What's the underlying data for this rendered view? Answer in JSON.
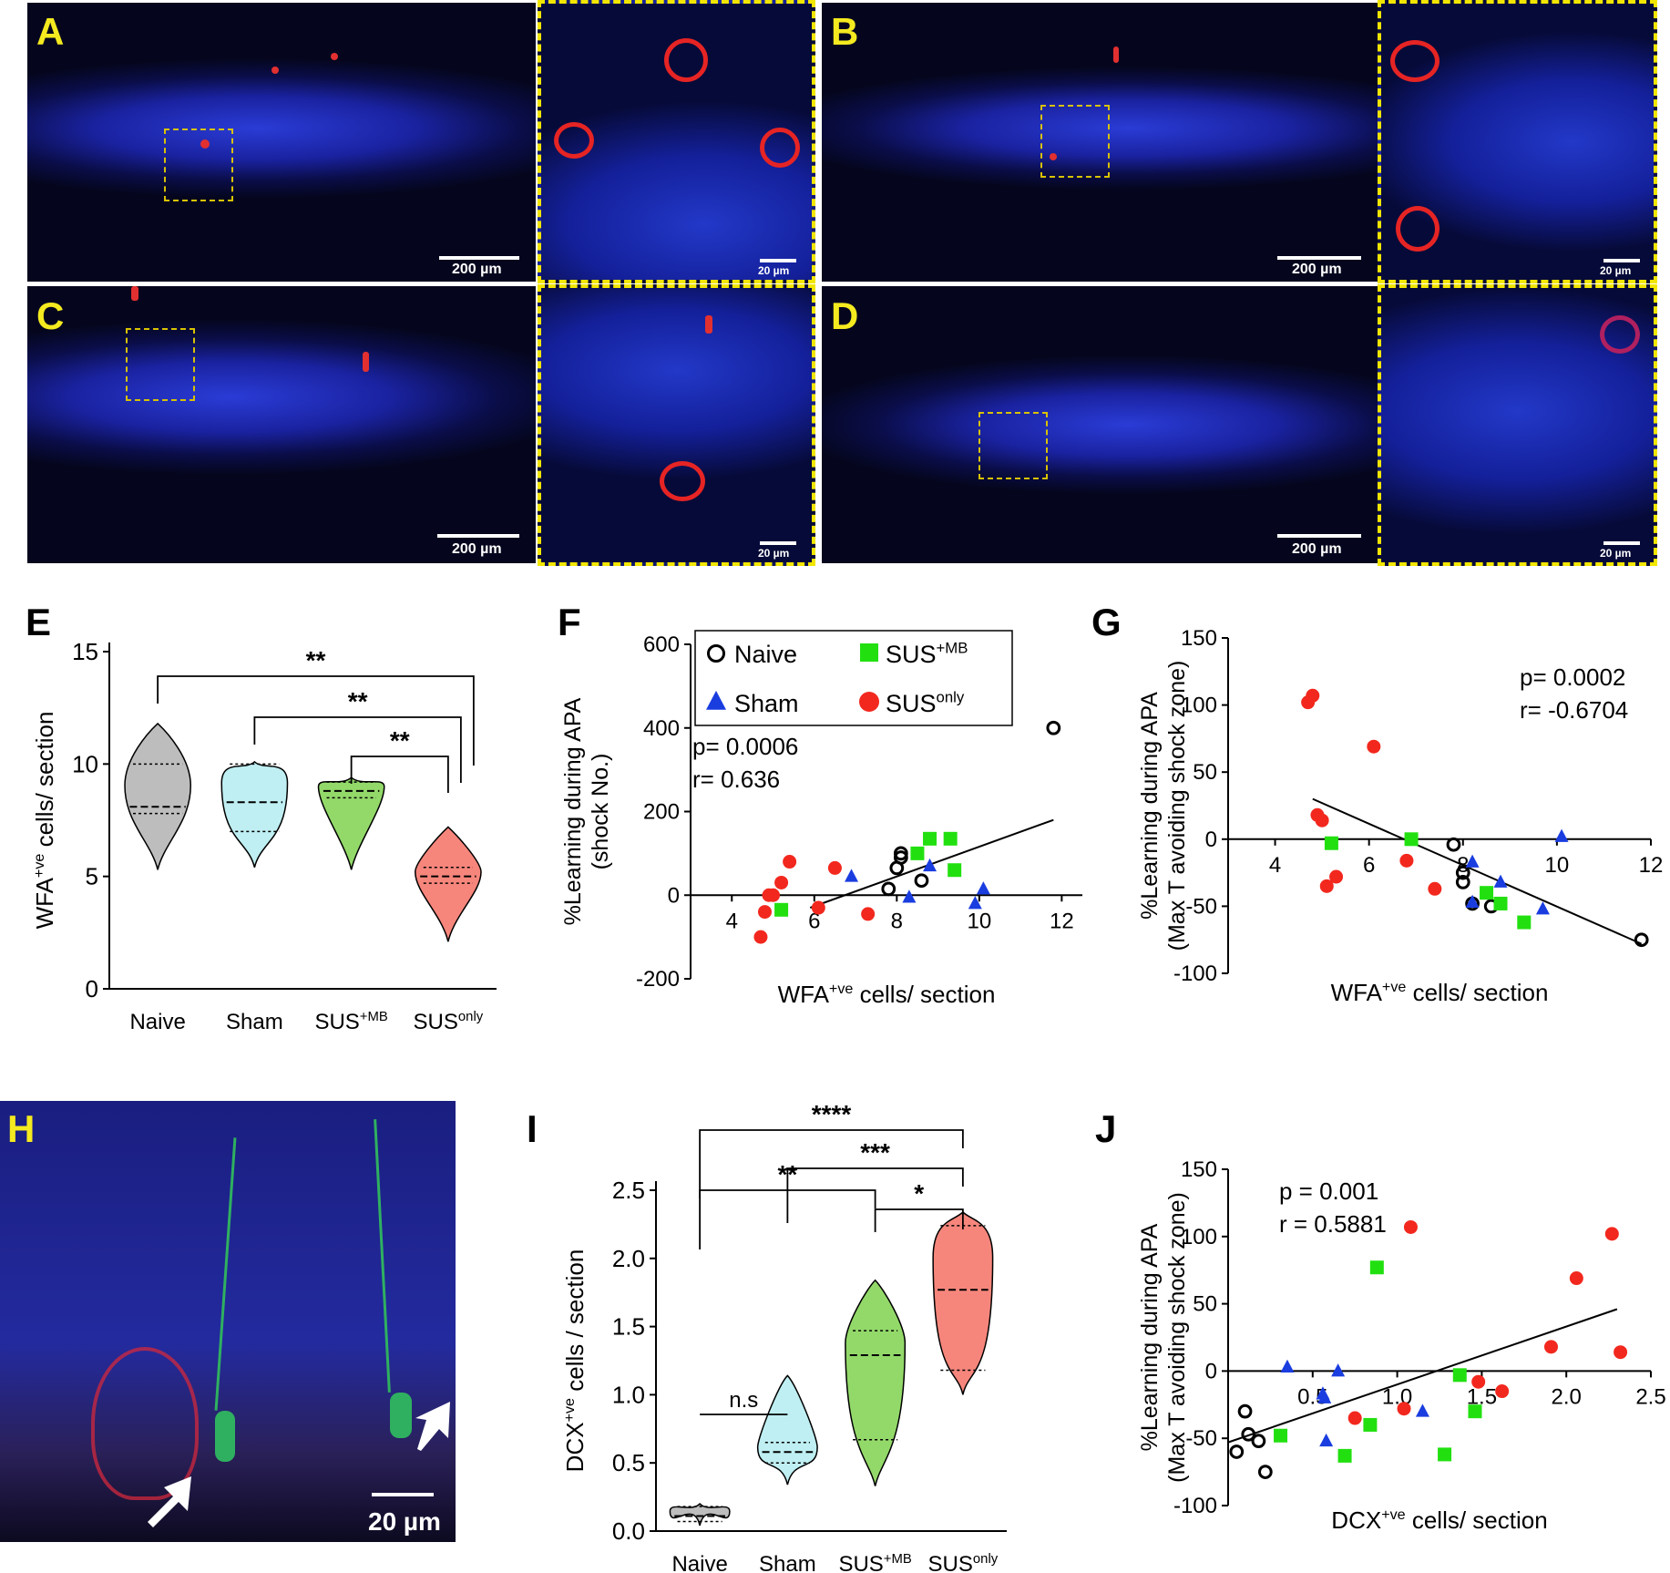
{
  "panels": {
    "A": "A",
    "B": "B",
    "C": "C",
    "D": "D",
    "E": "E",
    "F": "F",
    "G": "G",
    "H": "H",
    "I": "I",
    "J": "J"
  },
  "scalebars": {
    "large": "200 µm",
    "small": "20 µm",
    "h": "20 µm"
  },
  "legend": {
    "naive": "Naive",
    "sham": "Sham",
    "sus_mb_base": "SUS",
    "sus_mb_sup": "+MB",
    "sus_only_base": "SUS",
    "sus_only_sup": "only"
  },
  "colors": {
    "naive": "#000000",
    "sham": "#1a3de0",
    "sus_mb": "#22e010",
    "sus_only": "#f2281e",
    "violin_naive": "#bdbdbd",
    "violin_sham": "#bfeff2",
    "violin_sus_mb": "#93d96a",
    "violin_sus_only": "#f6867c"
  },
  "chart_data": [
    {
      "id": "E",
      "type": "violin",
      "ylabel_base": "WFA",
      "ylabel_sup": "+ve",
      "ylabel_rest": " cells/ section",
      "yticks": [
        "0",
        "5",
        "10",
        "15"
      ],
      "ylim": [
        0,
        15
      ],
      "categories": [
        "Naive",
        "Sham",
        "SUS+MB",
        "SUSonly"
      ],
      "groups": [
        {
          "name": "Naive",
          "min": 5.3,
          "max": 11.8,
          "median": 8.1,
          "q1": 7.8,
          "q3": 10.0
        },
        {
          "name": "Sham",
          "min": 5.4,
          "max": 10.1,
          "median": 8.3,
          "q1": 7.0,
          "q3": 10.0
        },
        {
          "name": "SUS+MB",
          "min": 5.3,
          "max": 9.4,
          "median": 8.8,
          "q1": 8.5,
          "q3": 9.2
        },
        {
          "name": "SUSonly",
          "min": 2.1,
          "max": 7.2,
          "median": 5.0,
          "q1": 4.7,
          "q3": 5.4
        }
      ],
      "significance": [
        {
          "from": "Naive",
          "to": "SUSonly",
          "label": "**"
        },
        {
          "from": "Sham",
          "to": "SUSonly",
          "label": "**"
        },
        {
          "from": "SUS+MB",
          "to": "SUSonly",
          "label": "**"
        }
      ]
    },
    {
      "id": "F",
      "type": "scatter",
      "ylabel1": "%Learning during APA",
      "ylabel2": "(shock No.)",
      "xlabel_base": "WFA",
      "xlabel_sup": "+ve",
      "xlabel_rest": " cells/ section",
      "xticks": [
        "4",
        "6",
        "8",
        "10",
        "12"
      ],
      "yticks": [
        "-200",
        "0",
        "200",
        "400",
        "600"
      ],
      "xlim": [
        3,
        12.5
      ],
      "ylim": [
        -200,
        600
      ],
      "stat_p": "p= 0.0006",
      "stat_r": "r= 0.636",
      "fit": {
        "x1": 5.9,
        "y1": -30,
        "x2": 11.8,
        "y2": 180
      },
      "series": [
        {
          "name": "Naive",
          "points": [
            [
              11.8,
              400
            ],
            [
              8.1,
              100
            ],
            [
              8.0,
              65
            ],
            [
              7.8,
              15
            ],
            [
              8.6,
              35
            ],
            [
              8.1,
              90
            ]
          ]
        },
        {
          "name": "Sham",
          "points": [
            [
              6.9,
              45
            ],
            [
              8.3,
              -5
            ],
            [
              8.8,
              70
            ],
            [
              9.9,
              -20
            ],
            [
              10.1,
              15
            ]
          ]
        },
        {
          "name": "SUS+MB",
          "points": [
            [
              8.5,
              100
            ],
            [
              8.8,
              135
            ],
            [
              9.3,
              135
            ],
            [
              9.4,
              60
            ],
            [
              5.2,
              -35
            ]
          ]
        },
        {
          "name": "SUSonly",
          "points": [
            [
              4.7,
              -100
            ],
            [
              4.8,
              -40
            ],
            [
              4.9,
              0
            ],
            [
              5.0,
              0
            ],
            [
              5.2,
              30
            ],
            [
              5.4,
              80
            ],
            [
              6.1,
              -30
            ],
            [
              6.5,
              65
            ],
            [
              7.3,
              -45
            ]
          ]
        }
      ]
    },
    {
      "id": "G",
      "type": "scatter",
      "ylabel1": "%Learning during APA",
      "ylabel2": "(Max T avoiding shock zone)",
      "xlabel_base": "WFA",
      "xlabel_sup": "+ve",
      "xlabel_rest": " cells/ section",
      "xticks": [
        "4",
        "6",
        "8",
        "10",
        "12"
      ],
      "yticks": [
        "-100",
        "-50",
        "0",
        "50",
        "100",
        "150"
      ],
      "xlim": [
        3,
        12
      ],
      "ylim": [
        -100,
        150
      ],
      "stat_p": "p= 0.0002",
      "stat_r": "r= -0.6704",
      "fit": {
        "x1": 4.8,
        "y1": 30,
        "x2": 11.8,
        "y2": -78
      },
      "series": [
        {
          "name": "Naive",
          "points": [
            [
              11.8,
              -75
            ],
            [
              7.8,
              -4
            ],
            [
              8.0,
              -25
            ],
            [
              8.0,
              -32
            ],
            [
              8.2,
              -48
            ],
            [
              8.6,
              -50
            ]
          ]
        },
        {
          "name": "Sham",
          "points": [
            [
              8.2,
              -17
            ],
            [
              8.2,
              -47
            ],
            [
              8.8,
              -32
            ],
            [
              9.7,
              -52
            ],
            [
              10.1,
              2
            ]
          ]
        },
        {
          "name": "SUS+MB",
          "points": [
            [
              5.2,
              -3
            ],
            [
              6.9,
              0
            ],
            [
              8.5,
              -40
            ],
            [
              8.8,
              -48
            ],
            [
              9.3,
              -62
            ]
          ]
        },
        {
          "name": "SUSonly",
          "points": [
            [
              4.7,
              102
            ],
            [
              4.8,
              107
            ],
            [
              4.9,
              18
            ],
            [
              5.0,
              14
            ],
            [
              5.1,
              -35
            ],
            [
              5.3,
              -28
            ],
            [
              6.1,
              69
            ],
            [
              6.8,
              -16
            ],
            [
              7.4,
              -37
            ]
          ]
        }
      ]
    },
    {
      "id": "I",
      "type": "violin",
      "ylabel_base": "DCX",
      "ylabel_sup": "+ve",
      "ylabel_rest": " cells / section",
      "yticks": [
        "0.0",
        "0.5",
        "1.0",
        "1.5",
        "2.0",
        "2.5"
      ],
      "ylim": [
        0,
        2.5
      ],
      "categories": [
        "Naive",
        "Sham",
        "SUS+MB",
        "SUSonly"
      ],
      "groups": [
        {
          "name": "Naive",
          "min": 0.04,
          "max": 0.2,
          "median": 0.11,
          "q1": 0.07,
          "q3": 0.18
        },
        {
          "name": "Sham",
          "min": 0.34,
          "max": 1.14,
          "median": 0.58,
          "q1": 0.5,
          "q3": 0.65
        },
        {
          "name": "SUS+MB",
          "min": 0.33,
          "max": 1.84,
          "median": 1.29,
          "q1": 0.67,
          "q3": 1.47
        },
        {
          "name": "SUSonly",
          "min": 1.0,
          "max": 2.34,
          "median": 1.77,
          "q1": 1.18,
          "q3": 2.24
        }
      ],
      "significance": [
        {
          "from": "Naive",
          "to": "SUSonly",
          "label": "****"
        },
        {
          "from": "Sham",
          "to": "SUSonly",
          "label": "***"
        },
        {
          "from": "SUS+MB",
          "to": "SUSonly",
          "label": "*"
        },
        {
          "from": "Naive",
          "to": "SUS+MB",
          "label": "**"
        },
        {
          "from": "Naive",
          "to": "Sham",
          "label": "n.s"
        }
      ]
    },
    {
      "id": "J",
      "type": "scatter",
      "ylabel1": "%Learning during APA",
      "ylabel2": "(Max T avoiding shock zone)",
      "xlabel_base": "DCX",
      "xlabel_sup": "+ve",
      "xlabel_rest": "  cells/ section",
      "xticks": [
        "0.5",
        "1.0",
        "1.5",
        "2.0",
        "2.5"
      ],
      "yticks": [
        "-100",
        "-50",
        "0",
        "50",
        "100",
        "150"
      ],
      "xlim": [
        0,
        2.5
      ],
      "ylim": [
        -100,
        150
      ],
      "stat_p": "p = 0.001",
      "stat_r": "r = 0.5881",
      "fit": {
        "x1": 0.0,
        "y1": -53,
        "x2": 2.3,
        "y2": 46
      },
      "series": [
        {
          "name": "Naive",
          "points": [
            [
              0.05,
              -60
            ],
            [
              0.1,
              -30
            ],
            [
              0.12,
              -47
            ],
            [
              0.18,
              -52
            ],
            [
              0.22,
              -75
            ]
          ]
        },
        {
          "name": "Sham",
          "points": [
            [
              0.35,
              3
            ],
            [
              0.56,
              -17
            ],
            [
              0.57,
              -20
            ],
            [
              0.58,
              -52
            ],
            [
              0.65,
              0
            ],
            [
              1.15,
              -30
            ]
          ]
        },
        {
          "name": "SUS+MB",
          "points": [
            [
              0.31,
              -48
            ],
            [
              0.69,
              -63
            ],
            [
              0.84,
              -40
            ],
            [
              0.88,
              77
            ],
            [
              1.28,
              -62
            ],
            [
              1.37,
              -3
            ],
            [
              1.46,
              -30
            ]
          ]
        },
        {
          "name": "SUSonly",
          "points": [
            [
              0.75,
              -35
            ],
            [
              1.04,
              -28
            ],
            [
              1.08,
              107
            ],
            [
              1.48,
              -8
            ],
            [
              1.62,
              -15
            ],
            [
              1.91,
              18
            ],
            [
              2.06,
              69
            ],
            [
              2.27,
              102
            ],
            [
              2.32,
              14
            ]
          ]
        }
      ]
    }
  ]
}
